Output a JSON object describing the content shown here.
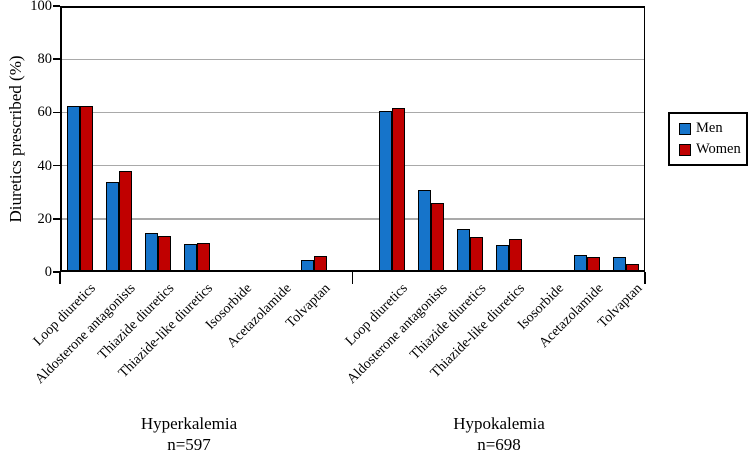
{
  "figure": {
    "kind": "static grouped bar chart figure",
    "background": "#ffffff"
  },
  "chart_data": {
    "type": "bar",
    "title": "",
    "ylabel": "Diuretics prescribed (%)",
    "xlabel": "",
    "ylim": [
      0,
      100
    ],
    "yticks": [
      0,
      20,
      40,
      60,
      80,
      100
    ],
    "grid": "horizontal",
    "legend": {
      "position": "right",
      "entries": [
        {
          "label": "Men",
          "color": "#1674ca"
        },
        {
          "label": "Women",
          "color": "#c00000"
        }
      ]
    },
    "colors": {
      "men": "#1674ca",
      "women": "#c00000",
      "bar_border": "#000000",
      "gridline": "#a9a9a9",
      "axis": "#000000"
    },
    "categories": [
      "Loop diuretics",
      "Aldosterone antagonists",
      "Thiazide diuretics",
      "Thiazide-like diuretics",
      "Isosorbide",
      "Acetazolamide",
      "Tolvaptan"
    ],
    "groups": [
      {
        "label": "Hyperkalemia",
        "n_label": "n=597",
        "series": [
          {
            "name": "Men",
            "values": [
              62.5,
              34,
              14.5,
              10.5,
              0.4,
              0.5,
              4.5
            ]
          },
          {
            "name": "Women",
            "values": [
              62.5,
              38,
              13.5,
              11,
              0.5,
              0.5,
              6
            ]
          }
        ]
      },
      {
        "label": "Hypokalemia",
        "n_label": "n=698",
        "series": [
          {
            "name": "Men",
            "values": [
              60.5,
              31,
              16,
              10,
              0.4,
              6.5,
              5.5
            ]
          },
          {
            "name": "Women",
            "values": [
              61.5,
              26,
              13,
              12.5,
              0.5,
              5.5,
              3
            ]
          }
        ]
      }
    ]
  }
}
